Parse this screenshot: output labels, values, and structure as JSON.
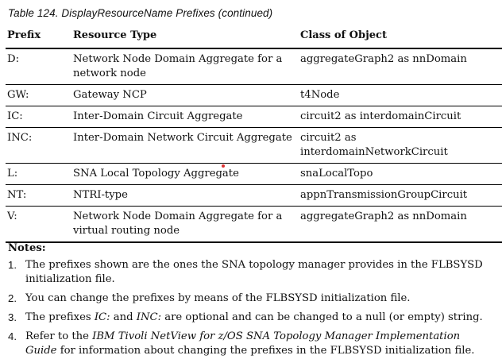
{
  "caption": "Table 124. DisplayResourceName Prefixes  (continued)",
  "table": {
    "headers": [
      "Prefix",
      "Resource Type",
      "Class of Object"
    ],
    "rows": [
      [
        "D:",
        "Network Node Domain Aggregate for a network node",
        "aggregateGraph2 as nnDomain"
      ],
      [
        "GW:",
        "Gateway NCP",
        "t4Node"
      ],
      [
        "IC:",
        "Inter-Domain Circuit Aggregate",
        "circuit2 as interdomainCircuit"
      ],
      [
        "INC:",
        "Inter-Domain Network Circuit Aggregate",
        "circuit2 as interdomainNetworkCircuit"
      ],
      [
        "L:",
        "SNA Local Topology Aggregate",
        "snaLocalTopo"
      ],
      [
        "NT:",
        "NTRI-type",
        "appnTransmissionGroupCircuit"
      ],
      [
        "V:",
        "Network Node Domain Aggregate for a virtual routing node",
        "aggregateGraph2 as nnDomain"
      ]
    ]
  },
  "notes": {
    "title": "Notes:",
    "items": [
      {
        "num": "1.",
        "text": "The prefixes shown are the ones the SNA topology manager provides in the FLBSYSD initialization file."
      },
      {
        "num": "2.",
        "text": "You can change the prefixes by means of the FLBSYSD initialization file."
      },
      {
        "num": "3.",
        "pre": "The prefixes ",
        "em1": "IC:",
        "mid": " and ",
        "em2": "INC:",
        "post": " are optional and can be changed to a null (or empty) string."
      },
      {
        "num": "4.",
        "pre": "Refer to the ",
        "em": "IBM Tivoli NetView for z/OS SNA Topology Manager Implementation Guide",
        "post": " for information about changing the prefixes in the FLBSYSD initialization file."
      }
    ]
  }
}
